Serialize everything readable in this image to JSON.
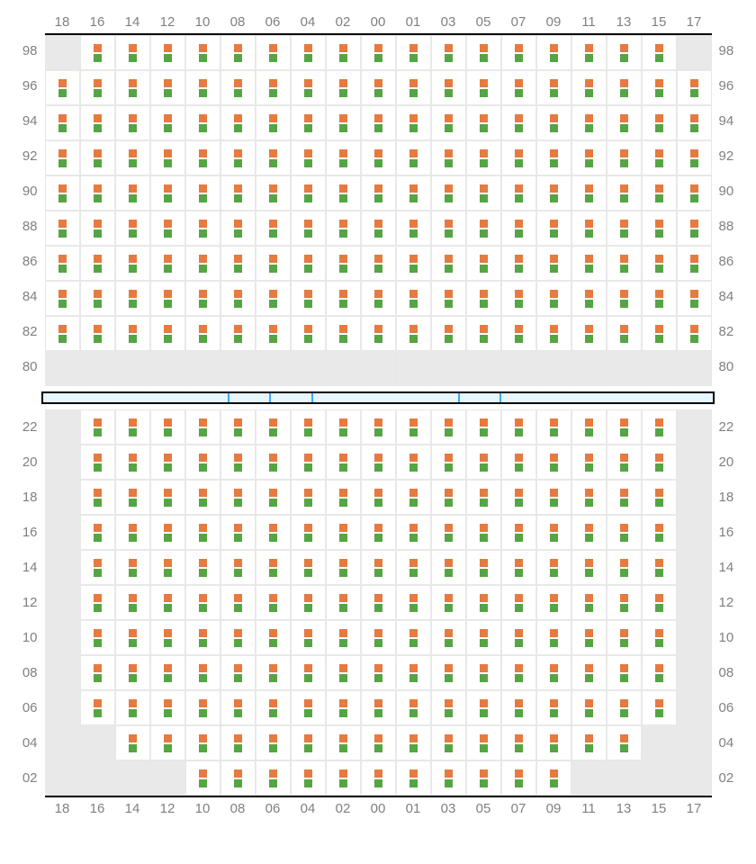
{
  "colors": {
    "seat_top": "#e67a40",
    "seat_bottom": "#55a544",
    "cell_bg": "#ffffff",
    "blank_bg": "#e9e9e9",
    "grid_border": "#e8e8e8",
    "outer_border": "#000000",
    "label_color": "#808080",
    "divider_fill": "#e6f5fe",
    "divider_border": "#33adff"
  },
  "layout": {
    "cell_size": 39,
    "square_size": 9,
    "label_fontsize": 15
  },
  "columns": [
    "18",
    "16",
    "14",
    "12",
    "10",
    "08",
    "06",
    "04",
    "02",
    "00",
    "01",
    "03",
    "05",
    "07",
    "09",
    "11",
    "13",
    "15",
    "17"
  ],
  "divider_segments": 6,
  "upper": {
    "rows": [
      "98",
      "96",
      "94",
      "92",
      "90",
      "88",
      "86",
      "84",
      "82",
      "80"
    ],
    "seats": {
      "98": [
        0,
        1,
        1,
        1,
        1,
        1,
        1,
        1,
        1,
        1,
        1,
        1,
        1,
        1,
        1,
        1,
        1,
        1,
        0
      ],
      "96": [
        1,
        1,
        1,
        1,
        1,
        1,
        1,
        1,
        1,
        1,
        1,
        1,
        1,
        1,
        1,
        1,
        1,
        1,
        1
      ],
      "94": [
        1,
        1,
        1,
        1,
        1,
        1,
        1,
        1,
        1,
        1,
        1,
        1,
        1,
        1,
        1,
        1,
        1,
        1,
        1
      ],
      "92": [
        1,
        1,
        1,
        1,
        1,
        1,
        1,
        1,
        1,
        1,
        1,
        1,
        1,
        1,
        1,
        1,
        1,
        1,
        1
      ],
      "90": [
        1,
        1,
        1,
        1,
        1,
        1,
        1,
        1,
        1,
        1,
        1,
        1,
        1,
        1,
        1,
        1,
        1,
        1,
        1
      ],
      "88": [
        1,
        1,
        1,
        1,
        1,
        1,
        1,
        1,
        1,
        1,
        1,
        1,
        1,
        1,
        1,
        1,
        1,
        1,
        1
      ],
      "86": [
        1,
        1,
        1,
        1,
        1,
        1,
        1,
        1,
        1,
        1,
        1,
        1,
        1,
        1,
        1,
        1,
        1,
        1,
        1
      ],
      "84": [
        1,
        1,
        1,
        1,
        1,
        1,
        1,
        1,
        1,
        1,
        1,
        1,
        1,
        1,
        1,
        1,
        1,
        1,
        1
      ],
      "82": [
        1,
        1,
        1,
        1,
        1,
        1,
        1,
        1,
        1,
        1,
        1,
        1,
        1,
        1,
        1,
        1,
        1,
        1,
        1
      ],
      "80": [
        0,
        0,
        0,
        0,
        0,
        0,
        0,
        0,
        0,
        0,
        0,
        0,
        0,
        0,
        0,
        0,
        0,
        0,
        0
      ]
    }
  },
  "lower": {
    "rows": [
      "22",
      "20",
      "18",
      "16",
      "14",
      "12",
      "10",
      "08",
      "06",
      "04",
      "02"
    ],
    "seats": {
      "22": [
        0,
        1,
        1,
        1,
        1,
        1,
        1,
        1,
        1,
        1,
        1,
        1,
        1,
        1,
        1,
        1,
        1,
        1,
        0
      ],
      "20": [
        0,
        1,
        1,
        1,
        1,
        1,
        1,
        1,
        1,
        1,
        1,
        1,
        1,
        1,
        1,
        1,
        1,
        1,
        0
      ],
      "18": [
        0,
        1,
        1,
        1,
        1,
        1,
        1,
        1,
        1,
        1,
        1,
        1,
        1,
        1,
        1,
        1,
        1,
        1,
        0
      ],
      "16": [
        0,
        1,
        1,
        1,
        1,
        1,
        1,
        1,
        1,
        1,
        1,
        1,
        1,
        1,
        1,
        1,
        1,
        1,
        0
      ],
      "14": [
        0,
        1,
        1,
        1,
        1,
        1,
        1,
        1,
        1,
        1,
        1,
        1,
        1,
        1,
        1,
        1,
        1,
        1,
        0
      ],
      "12": [
        0,
        1,
        1,
        1,
        1,
        1,
        1,
        1,
        1,
        1,
        1,
        1,
        1,
        1,
        1,
        1,
        1,
        1,
        0
      ],
      "10": [
        0,
        1,
        1,
        1,
        1,
        1,
        1,
        1,
        1,
        1,
        1,
        1,
        1,
        1,
        1,
        1,
        1,
        1,
        0
      ],
      "08": [
        0,
        1,
        1,
        1,
        1,
        1,
        1,
        1,
        1,
        1,
        1,
        1,
        1,
        1,
        1,
        1,
        1,
        1,
        0
      ],
      "06": [
        0,
        1,
        1,
        1,
        1,
        1,
        1,
        1,
        1,
        1,
        1,
        1,
        1,
        1,
        1,
        1,
        1,
        1,
        0
      ],
      "04": [
        0,
        0,
        1,
        1,
        1,
        1,
        1,
        1,
        1,
        1,
        1,
        1,
        1,
        1,
        1,
        1,
        1,
        0,
        0
      ],
      "02": [
        0,
        0,
        0,
        0,
        1,
        1,
        1,
        1,
        1,
        1,
        1,
        1,
        1,
        1,
        1,
        0,
        0,
        0,
        0
      ]
    }
  }
}
